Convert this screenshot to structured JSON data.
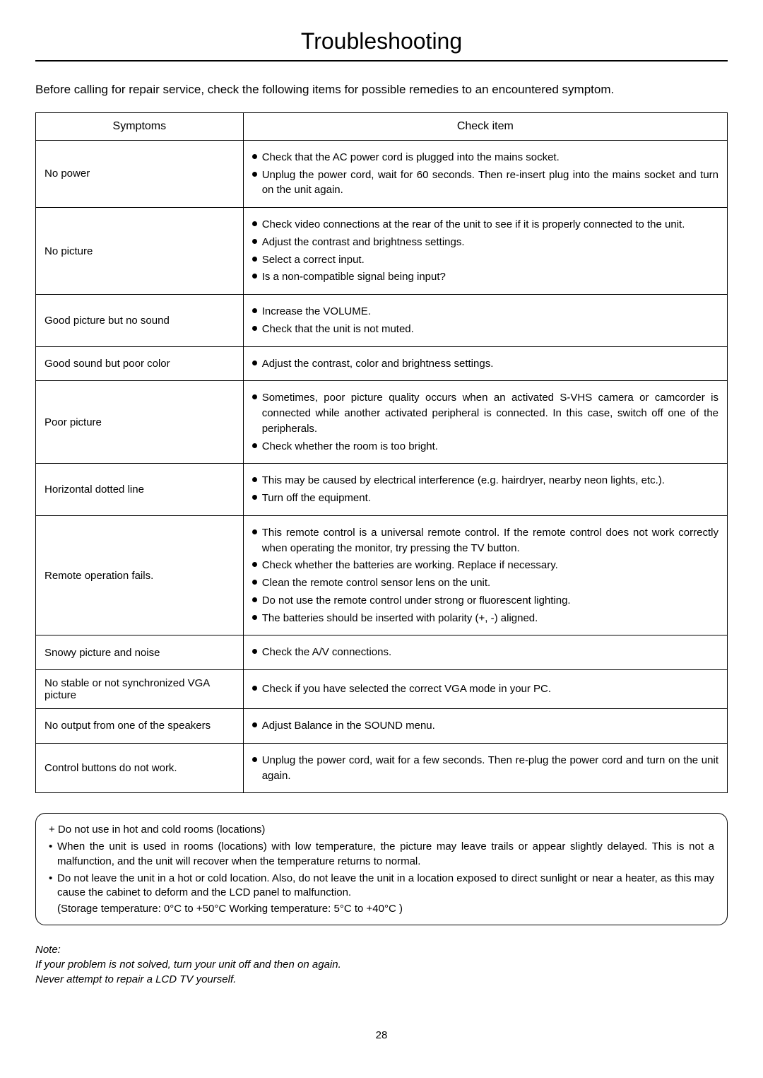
{
  "title": "Troubleshooting",
  "intro": "Before calling for repair service, check the following items for possible remedies to an encountered symptom.",
  "table": {
    "headers": {
      "symptoms": "Symptoms",
      "check": "Check item"
    },
    "rows": [
      {
        "symptom": "No power",
        "checks": [
          "Check that the  AC power cord is plugged into the mains socket.",
          "Unplug the power cord, wait for 60 seconds. Then re-insert plug into the mains socket and turn on the unit again."
        ]
      },
      {
        "symptom": "No picture",
        "checks": [
          "Check video connections at the rear of the unit to see if it is properly connected to the unit.",
          "Adjust the contrast and brightness settings.",
          "Select a correct input.",
          "Is a non-compatible signal being input?"
        ]
      },
      {
        "symptom": "Good picture but no sound",
        "checks": [
          "Increase the VOLUME.",
          "Check that the unit is not muted."
        ]
      },
      {
        "symptom": "Good sound but poor color",
        "checks": [
          "Adjust the contrast, color and brightness settings."
        ]
      },
      {
        "symptom": "Poor picture",
        "checks": [
          "Sometimes, poor picture quality occurs when an activated S-VHS camera or camcorder is connected while another activated peripheral is connected. In this case, switch off one of the peripherals.",
          "Check whether the room is too bright."
        ]
      },
      {
        "symptom": "Horizontal dotted line",
        "checks": [
          "This may be caused by electrical interference (e.g. hairdryer, nearby neon lights, etc.).",
          "Turn off the equipment."
        ]
      },
      {
        "symptom": "Remote operation fails.",
        "checks": [
          "This remote control is a universal remote control. If the remote control does not work correctly when operating the monitor, try pressing the TV button.",
          "Check whether the batteries are working. Replace if necessary.",
          "Clean the remote control sensor lens on the unit.",
          "Do not use the remote control under strong or fluorescent lighting.",
          "The batteries should be inserted with polarity (+, -) aligned."
        ]
      },
      {
        "symptom": "Snowy picture and noise",
        "checks": [
          "Check the A/V connections."
        ]
      },
      {
        "symptom": "No stable or not synchronized VGA picture",
        "checks": [
          "Check if you have selected the correct VGA mode in your PC."
        ]
      },
      {
        "symptom": "No output from one of the speakers",
        "checks": [
          "Adjust Balance in the SOUND menu."
        ]
      },
      {
        "symptom": "Control buttons do not work.",
        "checks": [
          "Unplug the power cord, wait for a few seconds. Then re-plug the power cord and turn on the unit again."
        ]
      }
    ]
  },
  "warning": {
    "heading": "+   Do not use in hot and cold rooms (locations)",
    "items": [
      "When the unit is used in rooms (locations) with low temperature, the picture may leave trails or appear slightly delayed. This is not a malfunction, and the unit will recover when the temperature returns to normal.",
      "Do not leave the unit in a hot or cold location. Also, do not leave the unit in a location exposed to direct sunlight or near a heater, as this may cause the cabinet to deform and the LCD panel to malfunction."
    ],
    "sub": "(Storage temperature:  0°C to +50°C  Working  temperature: 5°C to +40°C )"
  },
  "note": {
    "label": "Note:",
    "line1": "If your problem is not solved, turn your unit off and then on again.",
    "line2": "Never attempt to repair a LCD TV yourself."
  },
  "page_number": "28"
}
